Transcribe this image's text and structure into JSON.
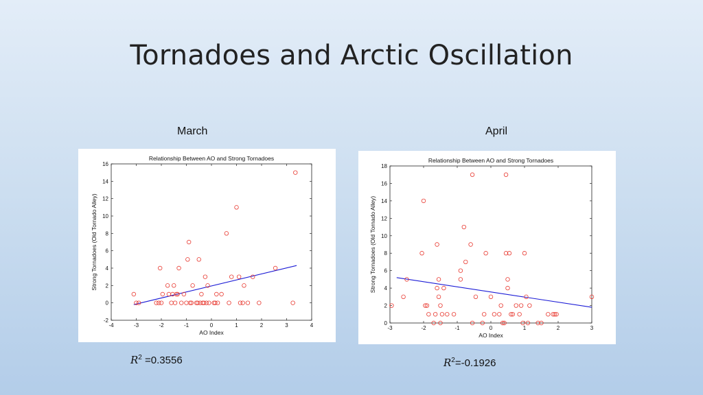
{
  "slide": {
    "title": "Tornadoes and Arctic Oscillation"
  },
  "panels": [
    {
      "label": "March",
      "r2_symbol": "R",
      "r2_power": "2",
      "r2_value": " =0.3556"
    },
    {
      "label": "April",
      "r2_symbol": "R",
      "r2_power": "2",
      "r2_value": "=-0.1926"
    }
  ],
  "colors": {
    "points": "#e8382f",
    "fit": "#1a1ad6"
  },
  "chart_data": [
    {
      "type": "scatter",
      "title": "Relationship Between AO and Strong Tornadoes",
      "xlabel": "AO Index",
      "ylabel": "Strong Tornadoes (Old Tornado Alley)",
      "xlim": [
        -4,
        4
      ],
      "ylim": [
        -2,
        16
      ],
      "xticks": [
        -4,
        -3,
        -2,
        -1,
        0,
        1,
        2,
        3,
        4
      ],
      "yticks": [
        -2,
        0,
        2,
        4,
        6,
        8,
        10,
        12,
        14,
        16
      ],
      "points": [
        [
          -3.1,
          1
        ],
        [
          -3.0,
          0
        ],
        [
          -2.9,
          0
        ],
        [
          -2.2,
          0
        ],
        [
          -2.1,
          0
        ],
        [
          -2.05,
          4
        ],
        [
          -2.0,
          0
        ],
        [
          -1.95,
          1
        ],
        [
          -1.75,
          2
        ],
        [
          -1.7,
          1
        ],
        [
          -1.6,
          0
        ],
        [
          -1.55,
          1
        ],
        [
          -1.5,
          2
        ],
        [
          -1.45,
          0
        ],
        [
          -1.4,
          1
        ],
        [
          -1.35,
          1
        ],
        [
          -1.3,
          4
        ],
        [
          -1.2,
          0
        ],
        [
          -1.1,
          1
        ],
        [
          -1.0,
          0
        ],
        [
          -0.95,
          5
        ],
        [
          -0.9,
          7
        ],
        [
          -0.85,
          0
        ],
        [
          -0.8,
          0
        ],
        [
          -0.75,
          2
        ],
        [
          -0.6,
          0
        ],
        [
          -0.55,
          0
        ],
        [
          -0.5,
          5
        ],
        [
          -0.45,
          0
        ],
        [
          -0.4,
          1
        ],
        [
          -0.35,
          0
        ],
        [
          -0.3,
          0
        ],
        [
          -0.25,
          3
        ],
        [
          -0.2,
          0
        ],
        [
          -0.15,
          2
        ],
        [
          -0.1,
          0
        ],
        [
          0.1,
          0
        ],
        [
          0.15,
          0
        ],
        [
          0.2,
          1
        ],
        [
          0.25,
          0
        ],
        [
          0.4,
          1
        ],
        [
          0.6,
          8
        ],
        [
          0.7,
          0
        ],
        [
          0.8,
          3
        ],
        [
          1.0,
          11
        ],
        [
          1.1,
          3
        ],
        [
          1.15,
          0
        ],
        [
          1.25,
          0
        ],
        [
          1.3,
          2
        ],
        [
          1.45,
          0
        ],
        [
          1.65,
          3
        ],
        [
          1.9,
          0
        ],
        [
          2.55,
          4
        ],
        [
          3.25,
          0
        ],
        [
          3.35,
          15
        ]
      ],
      "fit": {
        "x": [
          -3.1,
          3.4
        ],
        "y": [
          -0.2,
          4.3
        ]
      }
    },
    {
      "type": "scatter",
      "title": "Relationship Between AO and Strong Tornadoes",
      "xlabel": "AO Index",
      "ylabel": "Strong Tornadoes (Old Tornado Alley)",
      "xlim": [
        -3,
        3
      ],
      "ylim": [
        0,
        18
      ],
      "xticks": [
        -3,
        -2,
        -1,
        0,
        1,
        2,
        3
      ],
      "yticks": [
        0,
        2,
        4,
        6,
        8,
        10,
        12,
        14,
        16,
        18
      ],
      "points": [
        [
          -2.95,
          2
        ],
        [
          -2.6,
          3
        ],
        [
          -2.5,
          5
        ],
        [
          -2.05,
          8
        ],
        [
          -2.0,
          14
        ],
        [
          -1.95,
          2
        ],
        [
          -1.9,
          2
        ],
        [
          -1.85,
          1
        ],
        [
          -1.7,
          0
        ],
        [
          -1.65,
          1
        ],
        [
          -1.6,
          4
        ],
        [
          -1.6,
          9
        ],
        [
          -1.55,
          3
        ],
        [
          -1.55,
          5
        ],
        [
          -1.5,
          0
        ],
        [
          -1.5,
          2
        ],
        [
          -1.45,
          1
        ],
        [
          -1.4,
          4
        ],
        [
          -1.3,
          1
        ],
        [
          -1.1,
          1
        ],
        [
          -0.9,
          6
        ],
        [
          -0.9,
          5
        ],
        [
          -0.8,
          11
        ],
        [
          -0.75,
          7
        ],
        [
          -0.55,
          17
        ],
        [
          -0.6,
          9
        ],
        [
          -0.55,
          0
        ],
        [
          -0.45,
          3
        ],
        [
          -0.25,
          0
        ],
        [
          -0.2,
          1
        ],
        [
          -0.15,
          8
        ],
        [
          0.0,
          3
        ],
        [
          0.1,
          1
        ],
        [
          0.25,
          1
        ],
        [
          0.3,
          2
        ],
        [
          0.35,
          0
        ],
        [
          0.4,
          0
        ],
        [
          0.45,
          17
        ],
        [
          0.45,
          8
        ],
        [
          0.5,
          4
        ],
        [
          0.5,
          5
        ],
        [
          0.55,
          8
        ],
        [
          0.6,
          1
        ],
        [
          0.65,
          1
        ],
        [
          0.75,
          2
        ],
        [
          0.85,
          1
        ],
        [
          0.9,
          2
        ],
        [
          0.95,
          0
        ],
        [
          1.0,
          8
        ],
        [
          1.05,
          3
        ],
        [
          1.1,
          0
        ],
        [
          1.15,
          2
        ],
        [
          1.4,
          0
        ],
        [
          1.5,
          0
        ],
        [
          1.7,
          1
        ],
        [
          1.85,
          1
        ],
        [
          1.9,
          1
        ],
        [
          1.95,
          1
        ],
        [
          3.0,
          3
        ]
      ],
      "fit": {
        "x": [
          -2.8,
          3.0
        ],
        "y": [
          5.2,
          1.8
        ]
      }
    }
  ]
}
